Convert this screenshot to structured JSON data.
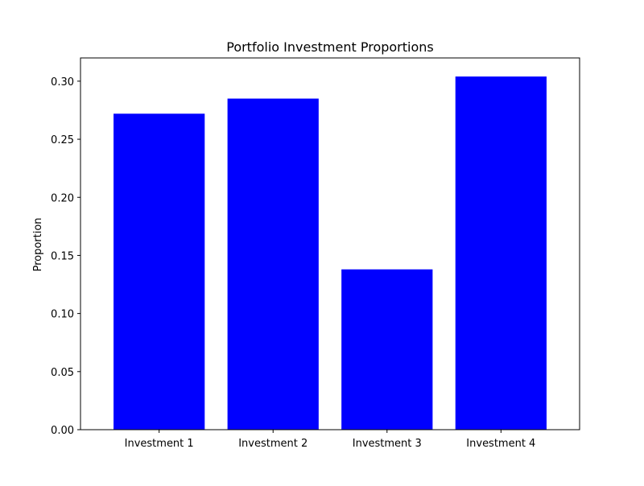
{
  "chart_data": {
    "type": "bar",
    "title": "Portfolio Investment Proportions",
    "xlabel": "",
    "ylabel": "Proportion",
    "categories": [
      "Investment 1",
      "Investment 2",
      "Investment 3",
      "Investment 4"
    ],
    "values": [
      0.272,
      0.285,
      0.138,
      0.304
    ],
    "ylim": [
      0,
      0.32
    ],
    "yticks": [
      0.0,
      0.05,
      0.1,
      0.15,
      0.2,
      0.25,
      0.3
    ],
    "ytick_labels": [
      "0.00",
      "0.05",
      "0.10",
      "0.15",
      "0.20",
      "0.25",
      "0.30"
    ],
    "grid": false,
    "legend": "none",
    "bar_color": "#0000ff"
  }
}
